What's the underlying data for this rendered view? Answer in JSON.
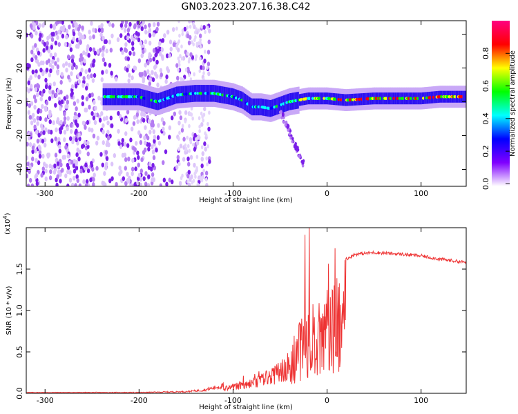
{
  "title": "GN03.2023.207.16.38.C42",
  "chart_data": [
    {
      "type": "heatmap",
      "xlabel": "Height of straight line (km)",
      "ylabel": "Frequency (Hz)",
      "xlim": [
        -320,
        148
      ],
      "ylim": [
        -50,
        48
      ],
      "xticks": [
        -300,
        -200,
        -100,
        0,
        100
      ],
      "yticks": [
        -40,
        -20,
        0,
        20,
        40
      ],
      "colorbar": {
        "label": "Normalized spectral amplitude",
        "range": [
          0,
          1
        ],
        "ticks": [
          "0.0",
          "0.2",
          "0.4",
          "0.6",
          "0.8"
        ],
        "colors": [
          "#ffffff",
          "#8000ff",
          "#0000ff",
          "#00ffff",
          "#00ff00",
          "#ffff00",
          "#ff0000",
          "#ff0080"
        ]
      },
      "ridge": [
        [
          -235,
          3
        ],
        [
          -200,
          3
        ],
        [
          -180,
          0
        ],
        [
          -160,
          4
        ],
        [
          -140,
          5
        ],
        [
          -120,
          5
        ],
        [
          -100,
          3
        ],
        [
          -90,
          1
        ],
        [
          -80,
          -3
        ],
        [
          -70,
          -3
        ],
        [
          -60,
          -4
        ],
        [
          -50,
          -2
        ],
        [
          -40,
          0
        ],
        [
          -30,
          1
        ],
        [
          -20,
          2
        ],
        [
          0,
          2
        ],
        [
          20,
          1
        ],
        [
          50,
          2
        ],
        [
          80,
          2
        ],
        [
          100,
          2
        ],
        [
          120,
          3
        ],
        [
          148,
          3
        ]
      ]
    },
    {
      "type": "line",
      "xlabel": "Height of straight line (km)",
      "ylabel": "SNR (10 * v/v)",
      "yscale_label": "(x10",
      "yscale_exp": "4",
      "yscale_close": ")",
      "xlim": [
        -320,
        148
      ],
      "ylim": [
        0,
        2.0
      ],
      "xticks": [
        -300,
        -200,
        -100,
        0,
        100
      ],
      "yticks": [
        "0.0",
        "0.5",
        "1.0",
        "1.5"
      ],
      "color": "#ee3333",
      "envelope": [
        [
          -320,
          0.01
        ],
        [
          -200,
          0.01
        ],
        [
          -150,
          0.02
        ],
        [
          -130,
          0.04
        ],
        [
          -115,
          0.08
        ],
        [
          -100,
          0.12
        ],
        [
          -80,
          0.18
        ],
        [
          -60,
          0.3
        ],
        [
          -45,
          0.45
        ],
        [
          -35,
          0.7
        ],
        [
          -28,
          0.9
        ],
        [
          -22,
          1.05
        ],
        [
          -15,
          1.1
        ],
        [
          -10,
          1.12
        ],
        [
          -5,
          1.2
        ],
        [
          0,
          1.3
        ],
        [
          10,
          1.5
        ],
        [
          20,
          1.62
        ],
        [
          30,
          1.68
        ],
        [
          50,
          1.7
        ],
        [
          80,
          1.68
        ],
        [
          100,
          1.66
        ],
        [
          120,
          1.62
        ],
        [
          148,
          1.58
        ]
      ]
    }
  ]
}
